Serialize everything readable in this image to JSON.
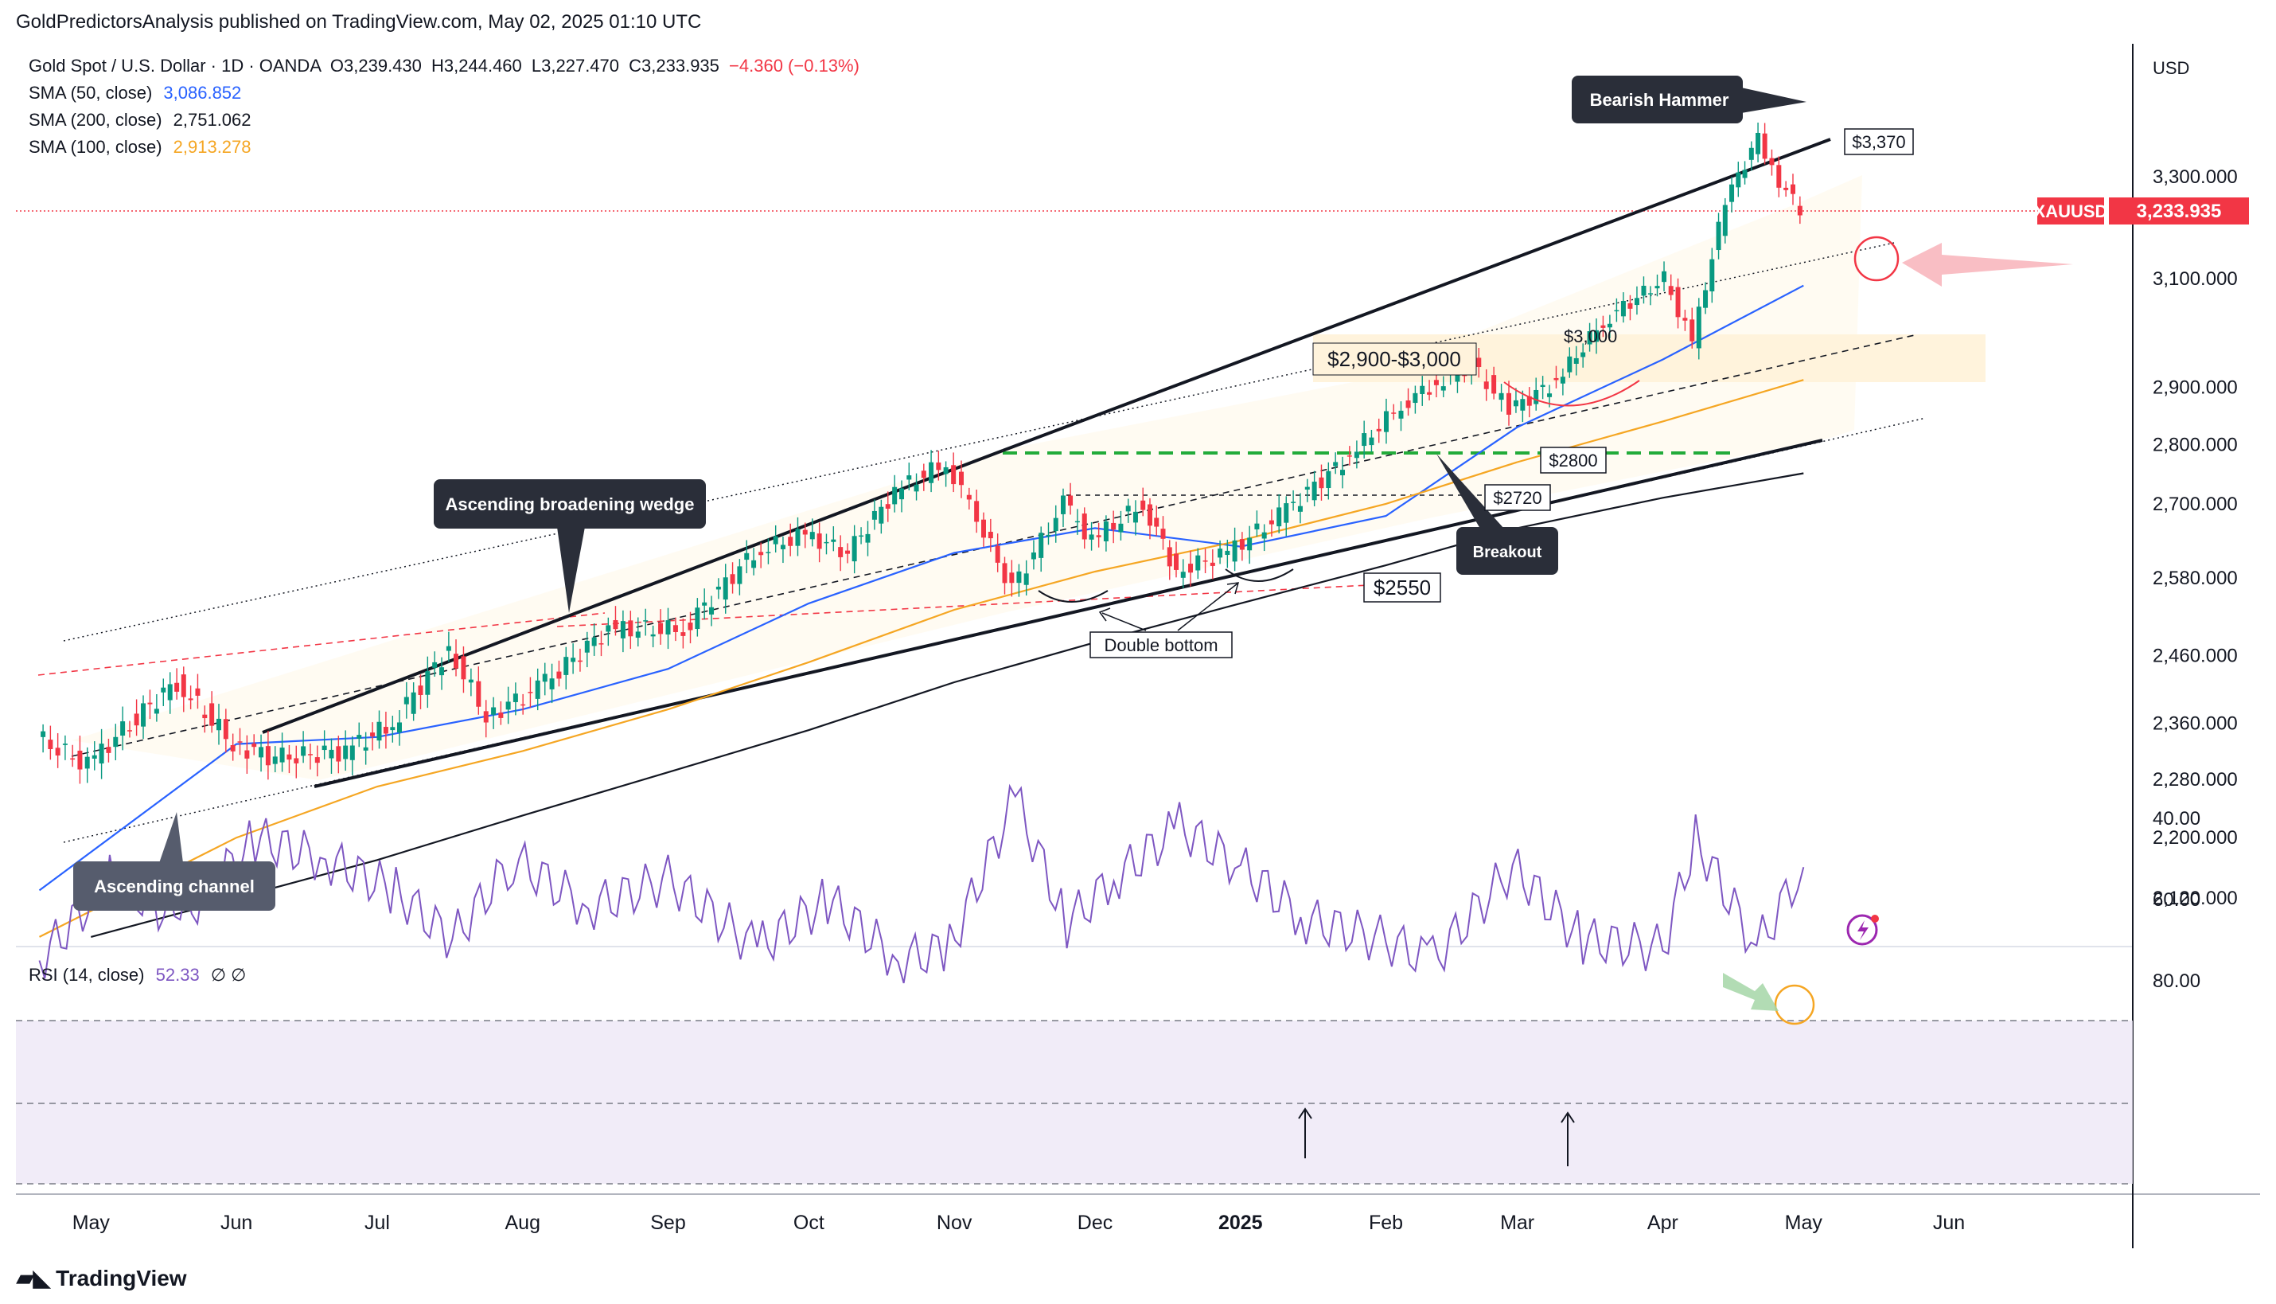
{
  "header": {
    "published_line": "GoldPredictorsAnalysis published on TradingView.com, May 02, 2025 01:10 UTC",
    "symbol_line": "Gold Spot / U.S. Dollar · 1D · OANDA",
    "ohlc": {
      "open": "O3,239.430",
      "high": "H3,244.460",
      "low": "L3,227.470",
      "close": "C3,233.935",
      "change": "−4.360 (−0.13%)"
    },
    "indicators": [
      {
        "label": "SMA (50, close)",
        "value": "3,086.852",
        "color": "#2962ff"
      },
      {
        "label": "SMA (200, close)",
        "value": "2,751.062",
        "color": "#131722"
      },
      {
        "label": "SMA (100, close)",
        "value": "2,913.278",
        "color": "#f5a623"
      }
    ],
    "currency": "USD"
  },
  "price_tag": {
    "symbol": "XAUUSD",
    "value": "3,233.935",
    "color": "#f23645"
  },
  "rsi_legend": {
    "label": "RSI (14, close)",
    "value": "52.33",
    "extra": "∅  ∅",
    "color": "#7e57c2"
  },
  "brand": {
    "name": "TradingView"
  },
  "annotations": {
    "bearish_hammer": "Bearish Hammer",
    "wedge": "Ascending broadening wedge",
    "channel": "Ascending channel",
    "breakout": "Breakout",
    "double_bottom": "Double bottom",
    "zone": "$2,900-$3,000",
    "level_3370": "$3,370",
    "level_3000": "$3,000",
    "level_2800": "$2800",
    "level_2720": "$2720",
    "level_2550": "$2550"
  },
  "chart_data": [
    {
      "type": "line",
      "title": "Gold Spot / U.S. Dollar · 1D · OANDA",
      "yaxis_ticks": [
        "3,300.000",
        "3,100.000",
        "2,900.000",
        "2,800.000",
        "2,700.000",
        "2,580.000",
        "2,460.000",
        "2,360.000",
        "2,280.000",
        "2,200.000",
        "2,120.000"
      ],
      "xaxis_ticks": [
        "May",
        "Jun",
        "Jul",
        "Aug",
        "Sep",
        "Oct",
        "Nov",
        "Dec",
        "2025",
        "Feb",
        "Mar",
        "Apr",
        "May",
        "Jun"
      ],
      "ylim": [
        2070,
        3420
      ],
      "series": [
        {
          "name": "Gold Spot / U.S. Dollar",
          "kind": "close",
          "x": [
            "2024-04-20",
            "2024-05-01",
            "2024-05-10",
            "2024-05-20",
            "2024-06-01",
            "2024-06-10",
            "2024-06-25",
            "2024-07-05",
            "2024-07-17",
            "2024-07-25",
            "2024-08-05",
            "2024-08-20",
            "2024-09-05",
            "2024-09-20",
            "2024-10-01",
            "2024-10-10",
            "2024-10-20",
            "2024-10-31",
            "2024-11-05",
            "2024-11-14",
            "2024-11-25",
            "2024-12-01",
            "2024-12-12",
            "2024-12-19",
            "2024-12-30",
            "2025-01-10",
            "2025-01-25",
            "2025-02-05",
            "2025-02-11",
            "2025-02-20",
            "2025-02-28",
            "2025-03-10",
            "2025-03-20",
            "2025-04-02",
            "2025-04-08",
            "2025-04-15",
            "2025-04-22",
            "2025-04-25",
            "2025-05-01"
          ],
          "y": [
            2340,
            2300,
            2360,
            2420,
            2330,
            2310,
            2320,
            2360,
            2470,
            2370,
            2410,
            2500,
            2500,
            2620,
            2650,
            2620,
            2720,
            2770,
            2700,
            2560,
            2700,
            2640,
            2700,
            2590,
            2620,
            2680,
            2780,
            2870,
            2900,
            2940,
            2860,
            2910,
            3020,
            3100,
            2980,
            3250,
            3380,
            3310,
            3234
          ]
        },
        {
          "name": "SMA (50, close)",
          "x": [
            "2024-04-20",
            "2024-06-01",
            "2024-07-01",
            "2024-08-01",
            "2024-09-01",
            "2024-10-01",
            "2024-11-01",
            "2024-12-01",
            "2025-01-01",
            "2025-02-01",
            "2025-03-01",
            "2025-04-01",
            "2025-05-01"
          ],
          "y": [
            2130,
            2330,
            2340,
            2380,
            2440,
            2540,
            2620,
            2660,
            2630,
            2680,
            2830,
            2950,
            3086.852
          ]
        },
        {
          "name": "SMA (100, close)",
          "x": [
            "2024-04-20",
            "2024-06-01",
            "2024-07-01",
            "2024-08-01",
            "2024-09-01",
            "2024-10-01",
            "2024-11-01",
            "2024-12-01",
            "2025-01-01",
            "2025-02-01",
            "2025-03-01",
            "2025-04-01",
            "2025-05-01"
          ],
          "y": [
            2070,
            2200,
            2270,
            2320,
            2380,
            2450,
            2530,
            2590,
            2640,
            2700,
            2770,
            2840,
            2913.278
          ]
        },
        {
          "name": "SMA (200, close)",
          "x": [
            "2024-05-01",
            "2024-06-01",
            "2024-07-01",
            "2024-08-01",
            "2024-09-01",
            "2024-10-01",
            "2024-11-01",
            "2024-12-01",
            "2025-01-01",
            "2025-02-01",
            "2025-03-01",
            "2025-04-01",
            "2025-05-01"
          ],
          "y": [
            2070,
            2120,
            2170,
            2230,
            2290,
            2350,
            2420,
            2480,
            2540,
            2600,
            2660,
            2710,
            2751.062
          ]
        }
      ]
    },
    {
      "type": "line",
      "title": "RSI (14, close)",
      "yaxis_ticks": [
        "80.00",
        "60.00",
        "40.00"
      ],
      "ylim": [
        30,
        85
      ],
      "series": [
        {
          "name": "RSI (14, close)",
          "x": [
            "2024-04-20",
            "2024-05-05",
            "2024-05-20",
            "2024-06-05",
            "2024-06-20",
            "2024-07-05",
            "2024-07-17",
            "2024-07-30",
            "2024-08-15",
            "2024-09-01",
            "2024-09-20",
            "2024-10-05",
            "2024-10-20",
            "2024-10-31",
            "2024-11-14",
            "2024-11-25",
            "2024-12-05",
            "2024-12-19",
            "2025-01-01",
            "2025-01-15",
            "2025-02-01",
            "2025-02-11",
            "2025-02-28",
            "2025-03-15",
            "2025-04-01",
            "2025-04-08",
            "2025-04-21",
            "2025-05-01"
          ],
          "y": [
            75,
            55,
            65,
            45,
            50,
            58,
            70,
            50,
            62,
            55,
            72,
            60,
            75,
            72,
            35,
            66,
            55,
            42,
            52,
            65,
            70,
            75,
            52,
            70,
            72,
            45,
            72,
            52
          ]
        }
      ]
    }
  ]
}
